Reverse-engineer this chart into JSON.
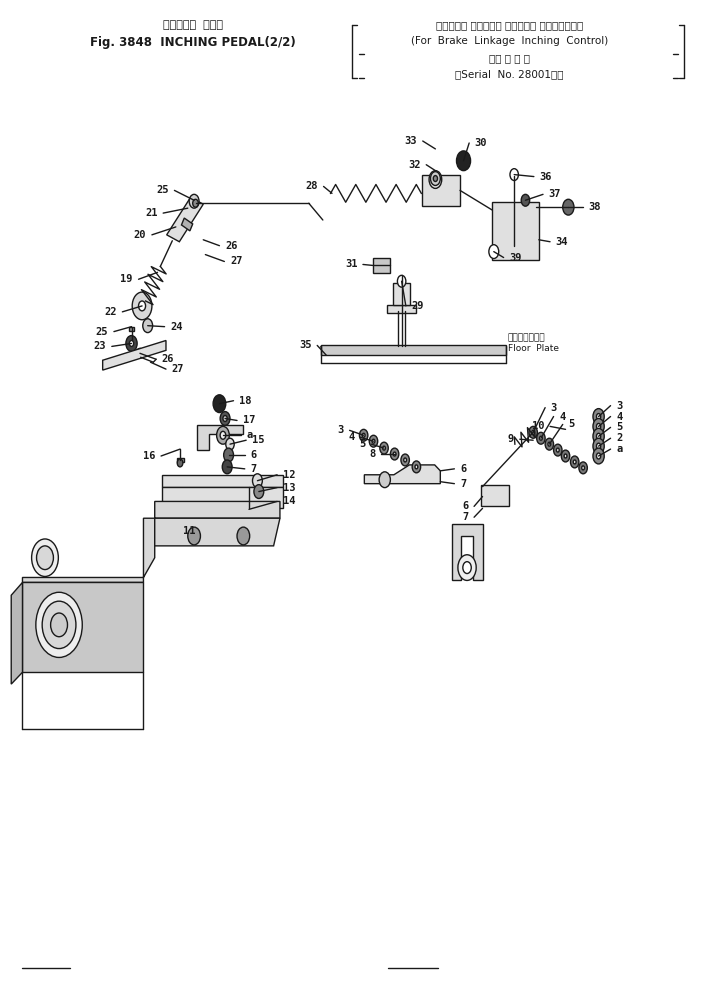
{
  "title_line1_jp": "インチング  ペダル",
  "title_line1_en": "Fig. 3848  INCHING PEDAL(2/2)",
  "title_line2_jp": "（ブレーキ リンケージ インチング コントロール用",
  "title_line2_en": "(For  Brake  Linkage  Inching  Control)",
  "title_line3_jp": "（適 用 号 機",
  "title_line3_en": "（Serial  No. 28001～）",
  "bg_color": "#ffffff",
  "ink_color": "#1a1a1a",
  "fig_width": 7.09,
  "fig_height": 9.93,
  "floor_plate_jp": "フロアプレート",
  "floor_plate_en": "Floor  Plate"
}
